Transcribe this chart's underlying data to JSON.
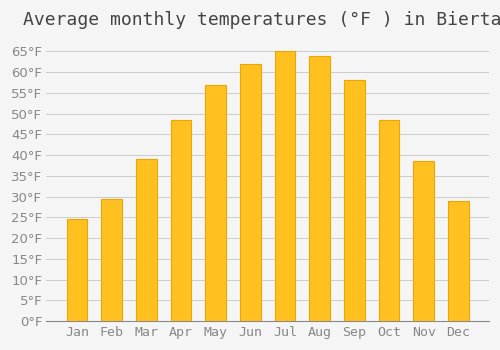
{
  "title": "Average monthly temperatures (°F ) in Biertan",
  "months": [
    "Jan",
    "Feb",
    "Mar",
    "Apr",
    "May",
    "Jun",
    "Jul",
    "Aug",
    "Sep",
    "Oct",
    "Nov",
    "Dec"
  ],
  "values": [
    24.5,
    29.5,
    39.0,
    48.5,
    57.0,
    62.0,
    65.0,
    64.0,
    58.0,
    48.5,
    38.5,
    29.0
  ],
  "bar_color": "#FFC020",
  "bar_edge_color": "#E8A800",
  "background_color": "#F5F5F5",
  "grid_color": "#CCCCCC",
  "text_color": "#888888",
  "ylim": [
    0,
    68
  ],
  "yticks": [
    0,
    5,
    10,
    15,
    20,
    25,
    30,
    35,
    40,
    45,
    50,
    55,
    60,
    65
  ],
  "title_fontsize": 13,
  "tick_fontsize": 9.5,
  "font_family": "monospace"
}
